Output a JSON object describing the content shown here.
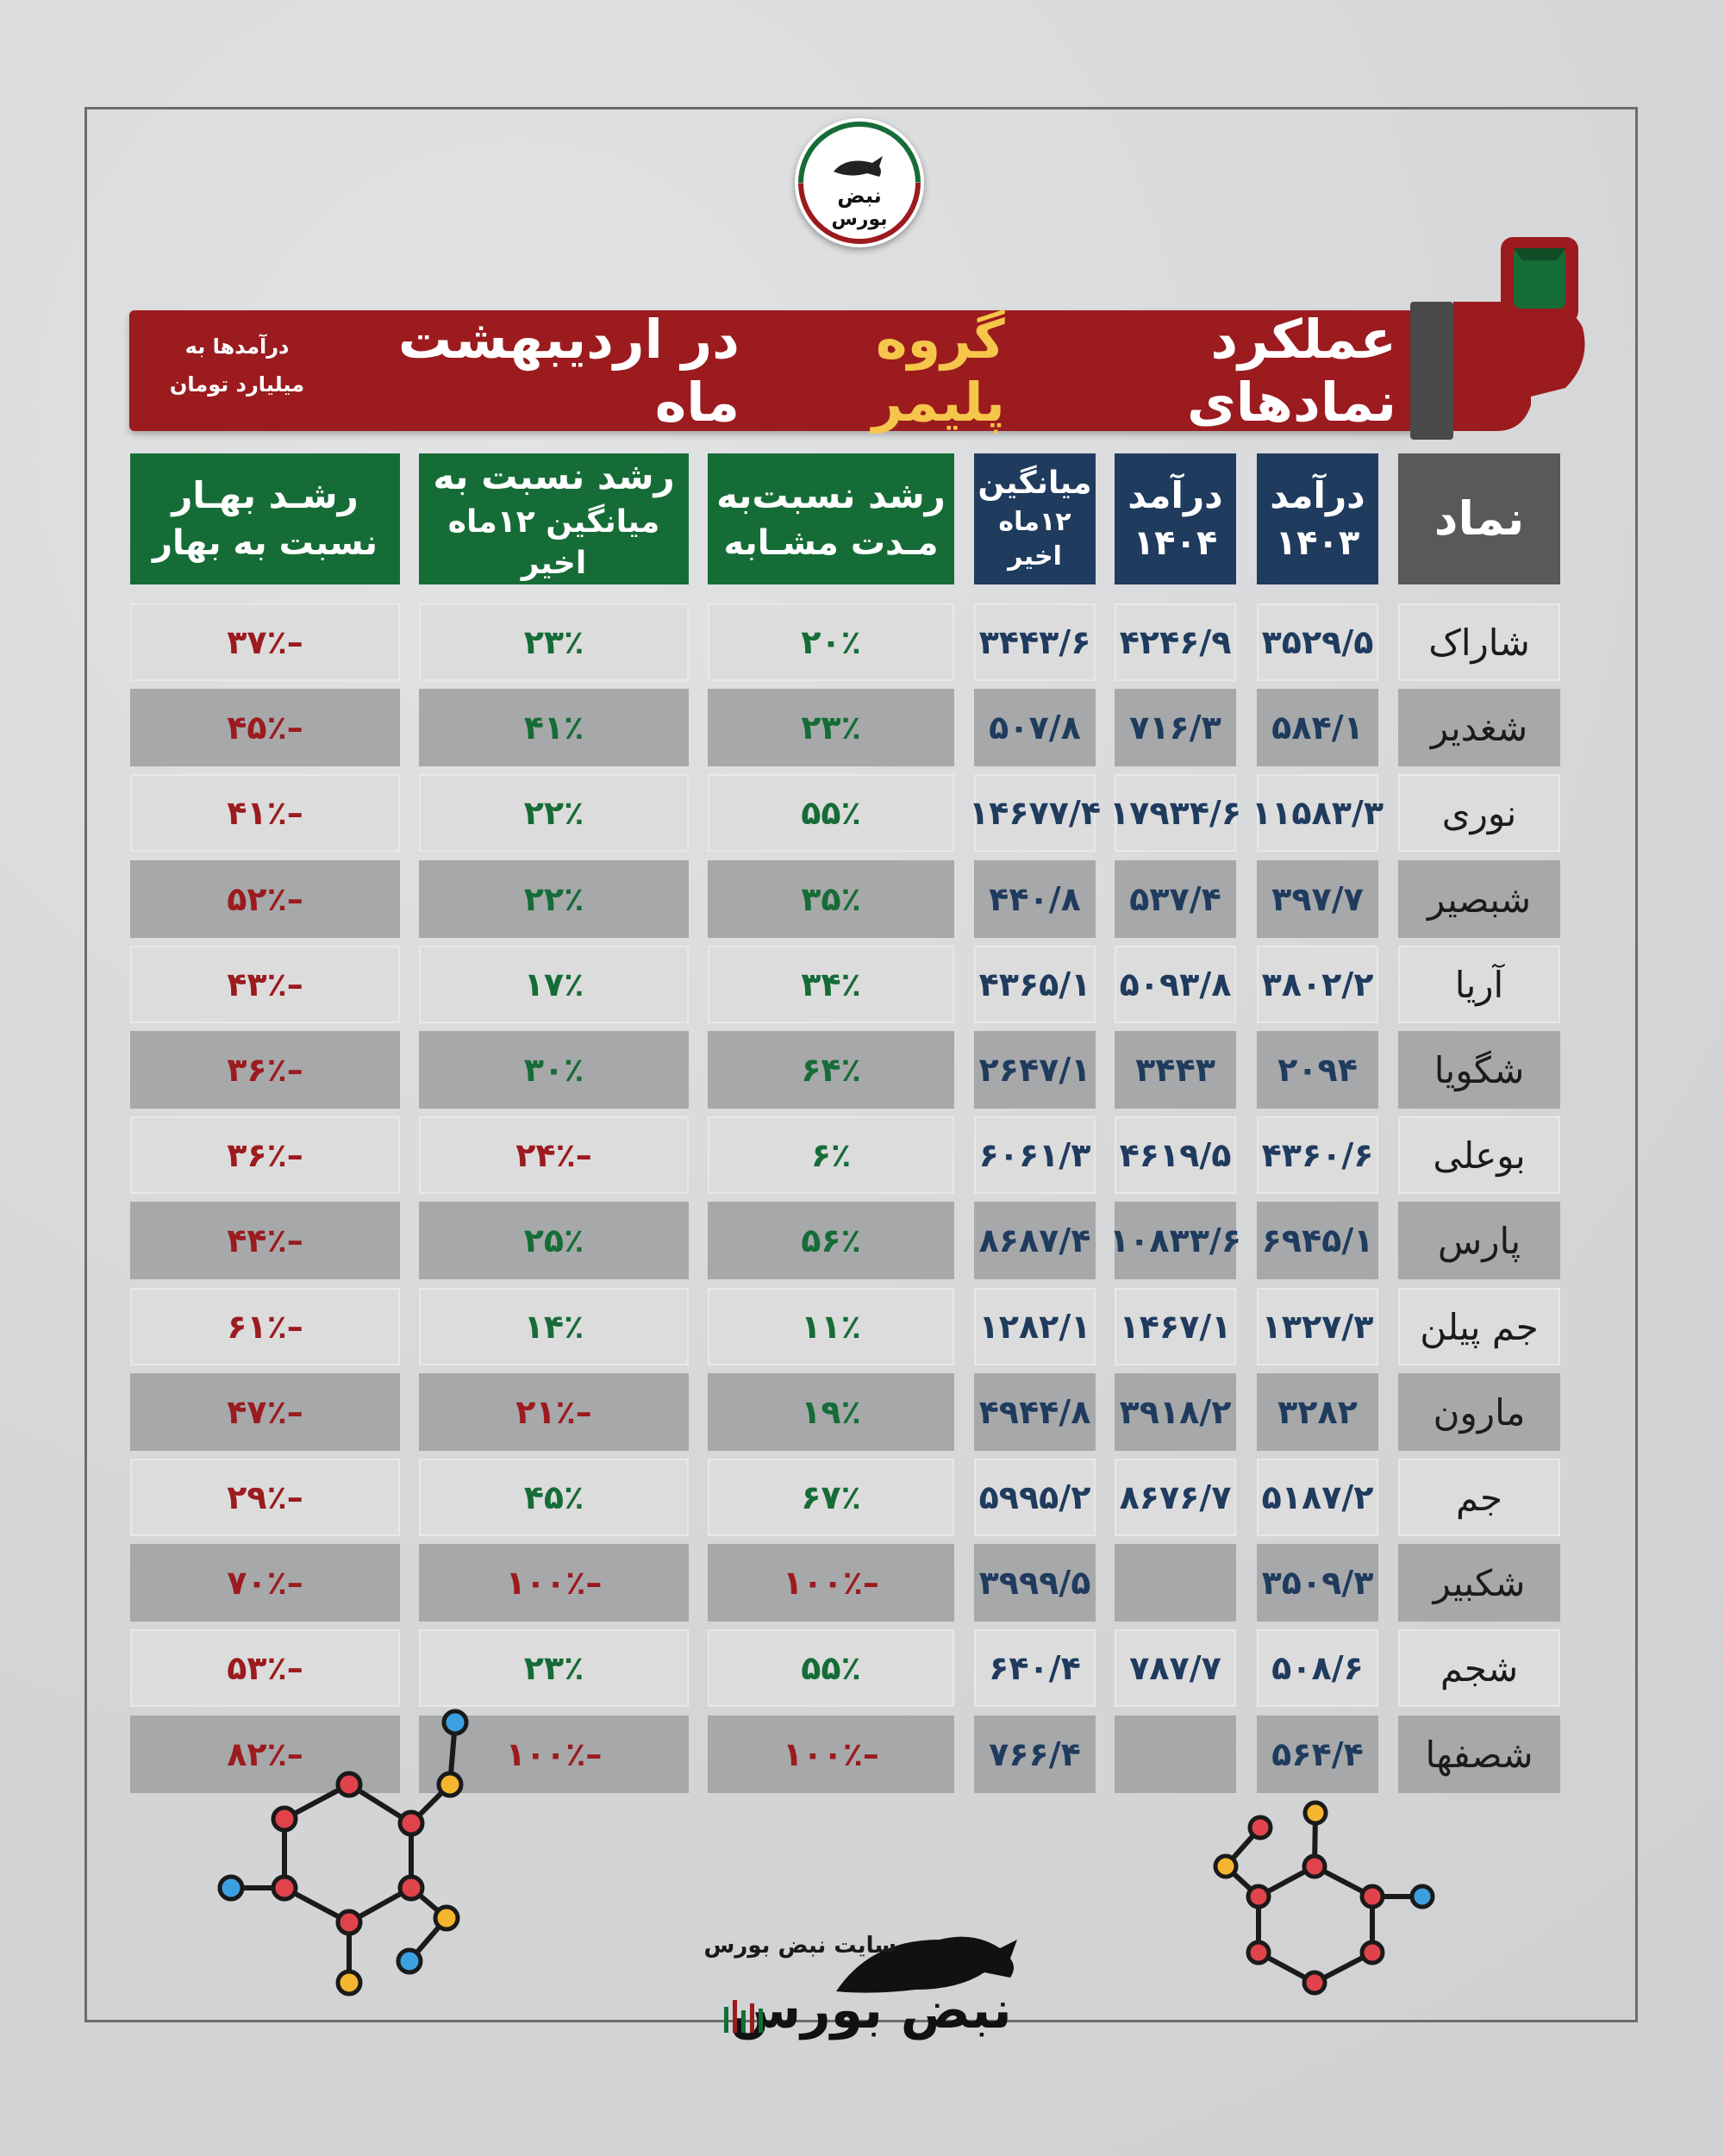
{
  "brand": {
    "logo_text_1": "نبض",
    "logo_text_2": "بورس",
    "footer_caption": "سایت نبض بورس",
    "footer_logo_text": "نبض بورس"
  },
  "title": {
    "part1": "عملکرد نمادهای ",
    "highlight": "گروه پلیمر",
    "part2": " در اردیبهشت ماه",
    "note_line1": "درآمدها به",
    "note_line2": "میلیارد تومان"
  },
  "colors": {
    "title_bg": "#9b1b1f",
    "header_blue": "#1f3b5e",
    "header_green": "#166c37",
    "header_gray": "#595959",
    "positive": "#166c37",
    "negative": "#9b1b1f"
  },
  "headers": {
    "symbol": "نماد",
    "rev1403_l1": "درآمد",
    "rev1403_l2": "۱۴۰۳",
    "rev1404_l1": "درآمد",
    "rev1404_l2": "۱۴۰۴",
    "avg_l1": "میانگین",
    "avg_l2": "۱۲ماه اخیر",
    "growth_same_l1": "رشد نسبت‌به",
    "growth_same_l2": "مـدت مشـابه",
    "growth_avg_l1": "رشد نسبت به",
    "growth_avg_l2": "میانگین ۱۲ماه اخیر",
    "growth_spring_l1": "رشـد بهـار",
    "growth_spring_l2": "نسبت به بهار"
  },
  "rows": [
    {
      "symbol": "شاراک",
      "rev1403": "۳۵۲۹/۵",
      "rev1404": "۴۲۴۶/۹",
      "avg": "۳۴۴۳/۶",
      "growth_same": "۲۰٪",
      "growth_avg": "۲۳٪",
      "growth_spring": "–۳۷٪",
      "gs_sign": "pos",
      "ga_sign": "pos",
      "gsp_sign": "neg"
    },
    {
      "symbol": "شغدیر",
      "rev1403": "۵۸۴/۱",
      "rev1404": "۷۱۶/۳",
      "avg": "۵۰۷/۸",
      "growth_same": "۲۳٪",
      "growth_avg": "۴۱٪",
      "growth_spring": "–۴۵٪",
      "gs_sign": "pos",
      "ga_sign": "pos",
      "gsp_sign": "neg"
    },
    {
      "symbol": "نوری",
      "rev1403": "۱۱۵۸۳/۳",
      "rev1404": "۱۷۹۳۴/۶",
      "avg": "۱۴۶۷۷/۴",
      "growth_same": "۵۵٪",
      "growth_avg": "۲۲٪",
      "growth_spring": "–۴۱٪",
      "gs_sign": "pos",
      "ga_sign": "pos",
      "gsp_sign": "neg"
    },
    {
      "symbol": "شبصیر",
      "rev1403": "۳۹۷/۷",
      "rev1404": "۵۳۷/۴",
      "avg": "۴۴۰/۸",
      "growth_same": "۳۵٪",
      "growth_avg": "۲۲٪",
      "growth_spring": "–۵۲٪",
      "gs_sign": "pos",
      "ga_sign": "pos",
      "gsp_sign": "neg"
    },
    {
      "symbol": "آریا",
      "rev1403": "۳۸۰۲/۲",
      "rev1404": "۵۰۹۳/۸",
      "avg": "۴۳۶۵/۱",
      "growth_same": "۳۴٪",
      "growth_avg": "۱۷٪",
      "growth_spring": "–۴۳٪",
      "gs_sign": "pos",
      "ga_sign": "pos",
      "gsp_sign": "neg"
    },
    {
      "symbol": "شگویا",
      "rev1403": "۲۰۹۴",
      "rev1404": "۳۴۴۳",
      "avg": "۲۶۴۷/۱",
      "growth_same": "۶۴٪",
      "growth_avg": "۳۰٪",
      "growth_spring": "–۳۶٪",
      "gs_sign": "pos",
      "ga_sign": "pos",
      "gsp_sign": "neg"
    },
    {
      "symbol": "بوعلی",
      "rev1403": "۴۳۶۰/۶",
      "rev1404": "۴۶۱۹/۵",
      "avg": "۶۰۶۱/۳",
      "growth_same": "۶٪",
      "growth_avg": "–۲۴٪",
      "growth_spring": "–۳۶٪",
      "gs_sign": "pos",
      "ga_sign": "neg",
      "gsp_sign": "neg"
    },
    {
      "symbol": "پارس",
      "rev1403": "۶۹۴۵/۱",
      "rev1404": "۱۰۸۳۳/۶",
      "avg": "۸۶۸۷/۴",
      "growth_same": "۵۶٪",
      "growth_avg": "۲۵٪",
      "growth_spring": "–۴۴٪",
      "gs_sign": "pos",
      "ga_sign": "pos",
      "gsp_sign": "neg"
    },
    {
      "symbol": "جم پیلن",
      "rev1403": "۱۳۲۷/۳",
      "rev1404": "۱۴۶۷/۱",
      "avg": "۱۲۸۲/۱",
      "growth_same": "۱۱٪",
      "growth_avg": "۱۴٪",
      "growth_spring": "–۶۱٪",
      "gs_sign": "pos",
      "ga_sign": "pos",
      "gsp_sign": "neg"
    },
    {
      "symbol": "مارون",
      "rev1403": "۳۲۸۲",
      "rev1404": "۳۹۱۸/۲",
      "avg": "۴۹۴۴/۸",
      "growth_same": "۱۹٪",
      "growth_avg": "–۲۱٪",
      "growth_spring": "–۴۷٪",
      "gs_sign": "pos",
      "ga_sign": "neg",
      "gsp_sign": "neg"
    },
    {
      "symbol": "جم",
      "rev1403": "۵۱۸۷/۲",
      "rev1404": "۸۶۷۶/۷",
      "avg": "۵۹۹۵/۲",
      "growth_same": "۶۷٪",
      "growth_avg": "۴۵٪",
      "growth_spring": "–۲۹٪",
      "gs_sign": "pos",
      "ga_sign": "pos",
      "gsp_sign": "neg"
    },
    {
      "symbol": "شکبیر",
      "rev1403": "۳۵۰۹/۳",
      "rev1404": "",
      "avg": "۳۹۹۹/۵",
      "growth_same": "–۱۰۰٪",
      "growth_avg": "–۱۰۰٪",
      "growth_spring": "–۷۰٪",
      "gs_sign": "neg",
      "ga_sign": "neg",
      "gsp_sign": "neg"
    },
    {
      "symbol": "شجم",
      "rev1403": "۵۰۸/۶",
      "rev1404": "۷۸۷/۷",
      "avg": "۶۴۰/۴",
      "growth_same": "۵۵٪",
      "growth_avg": "۲۳٪",
      "growth_spring": "–۵۳٪",
      "gs_sign": "pos",
      "ga_sign": "pos",
      "gsp_sign": "neg"
    },
    {
      "symbol": "شصفها",
      "rev1403": "۵۶۴/۴",
      "rev1404": "",
      "avg": "۷۶۶/۴",
      "growth_same": "–۱۰۰٪",
      "growth_avg": "–۱۰۰٪",
      "growth_spring": "–۸۲٪",
      "gs_sign": "neg",
      "ga_sign": "neg",
      "gsp_sign": "neg"
    }
  ]
}
